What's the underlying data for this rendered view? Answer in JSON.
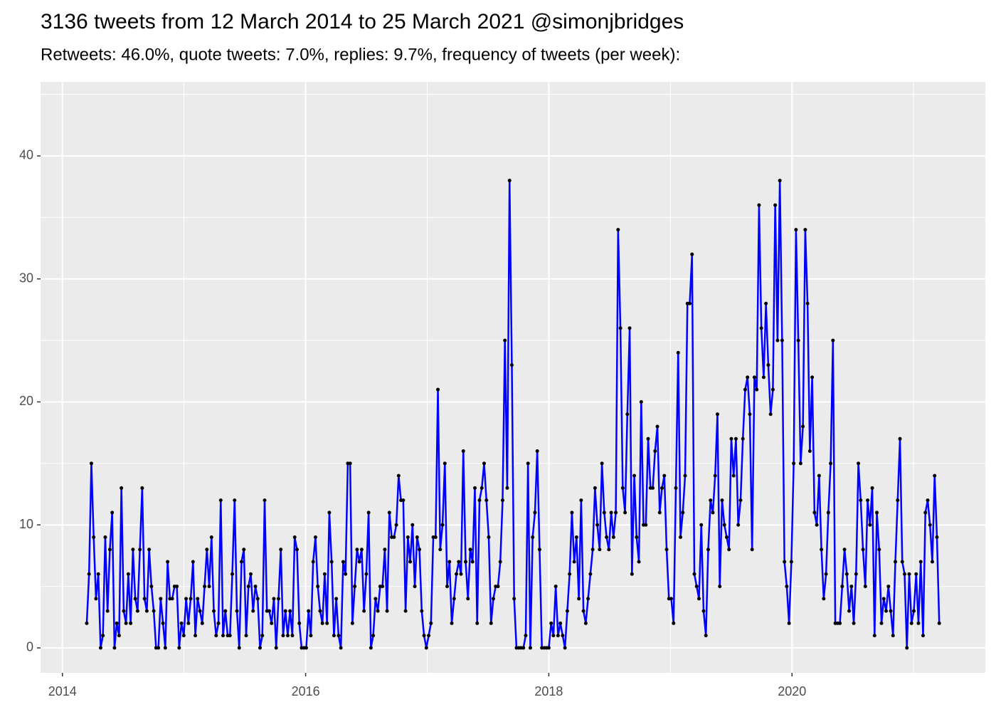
{
  "chart_data": {
    "type": "line",
    "title": "3136 tweets from 12 March 2014 to 25 March 2021 @simonjbridges",
    "subtitle": "Retweets: 46.0%, quote tweets: 7.0%, replies: 9.7%, frequency of tweets (per week):",
    "color": "#0000ff",
    "point_color": "#000000",
    "grid": true,
    "xlim": [
      2013.82,
      2021.59
    ],
    "xticks": [
      2014,
      2016,
      2018,
      2020
    ],
    "ylim": [
      -2.03,
      46.02
    ],
    "yticks": [
      0,
      10,
      20,
      30,
      40
    ],
    "x": [
      2014.2,
      2014.219,
      2014.238,
      2014.257,
      2014.276,
      2014.295,
      2014.314,
      2014.333,
      2014.352,
      2014.371,
      2014.39,
      2014.409,
      2014.428,
      2014.447,
      2014.466,
      2014.485,
      2014.504,
      2014.523,
      2014.542,
      2014.561,
      2014.58,
      2014.599,
      2014.618,
      2014.637,
      2014.656,
      2014.675,
      2014.694,
      2014.713,
      2014.732,
      2014.751,
      2014.77,
      2014.789,
      2014.808,
      2014.827,
      2014.846,
      2014.865,
      2014.884,
      2014.903,
      2014.922,
      2014.941,
      2014.96,
      2014.979,
      2014.998,
      2015.017,
      2015.036,
      2015.055,
      2015.074,
      2015.093,
      2015.112,
      2015.131,
      2015.15,
      2015.169,
      2015.188,
      2015.207,
      2015.226,
      2015.245,
      2015.264,
      2015.283,
      2015.302,
      2015.321,
      2015.34,
      2015.359,
      2015.378,
      2015.397,
      2015.416,
      2015.435,
      2015.454,
      2015.473,
      2015.492,
      2015.511,
      2015.53,
      2015.549,
      2015.568,
      2015.587,
      2015.606,
      2015.625,
      2015.644,
      2015.663,
      2015.682,
      2015.701,
      2015.72,
      2015.739,
      2015.758,
      2015.777,
      2015.796,
      2015.815,
      2015.834,
      2015.853,
      2015.872,
      2015.891,
      2015.91,
      2015.929,
      2015.948,
      2015.967,
      2015.986,
      2016.005,
      2016.024,
      2016.043,
      2016.062,
      2016.081,
      2016.1,
      2016.119,
      2016.138,
      2016.157,
      2016.176,
      2016.195,
      2016.214,
      2016.233,
      2016.252,
      2016.271,
      2016.29,
      2016.309,
      2016.328,
      2016.347,
      2016.366,
      2016.385,
      2016.404,
      2016.423,
      2016.442,
      2016.461,
      2016.48,
      2016.499,
      2016.518,
      2016.537,
      2016.556,
      2016.575,
      2016.594,
      2016.613,
      2016.632,
      2016.651,
      2016.67,
      2016.689,
      2016.708,
      2016.727,
      2016.746,
      2016.765,
      2016.784,
      2016.803,
      2016.822,
      2016.841,
      2016.86,
      2016.879,
      2016.898,
      2016.917,
      2016.936,
      2016.955,
      2016.974,
      2016.993,
      2017.012,
      2017.031,
      2017.05,
      2017.069,
      2017.088,
      2017.107,
      2017.126,
      2017.145,
      2017.164,
      2017.183,
      2017.202,
      2017.221,
      2017.24,
      2017.259,
      2017.278,
      2017.297,
      2017.316,
      2017.335,
      2017.354,
      2017.373,
      2017.392,
      2017.411,
      2017.43,
      2017.449,
      2017.468,
      2017.487,
      2017.506,
      2017.525,
      2017.544,
      2017.563,
      2017.582,
      2017.601,
      2017.62,
      2017.639,
      2017.658,
      2017.677,
      2017.696,
      2017.715,
      2017.734,
      2017.753,
      2017.772,
      2017.791,
      2017.81,
      2017.829,
      2017.848,
      2017.867,
      2017.886,
      2017.905,
      2017.924,
      2017.943,
      2017.962,
      2017.981,
      2018,
      2018.019,
      2018.038,
      2018.057,
      2018.076,
      2018.095,
      2018.114,
      2018.133,
      2018.152,
      2018.171,
      2018.19,
      2018.209,
      2018.228,
      2018.247,
      2018.266,
      2018.285,
      2018.304,
      2018.323,
      2018.342,
      2018.361,
      2018.38,
      2018.399,
      2018.418,
      2018.437,
      2018.456,
      2018.475,
      2018.494,
      2018.513,
      2018.532,
      2018.551,
      2018.57,
      2018.589,
      2018.608,
      2018.627,
      2018.646,
      2018.665,
      2018.684,
      2018.703,
      2018.722,
      2018.741,
      2018.76,
      2018.779,
      2018.798,
      2018.817,
      2018.836,
      2018.855,
      2018.874,
      2018.893,
      2018.912,
      2018.931,
      2018.95,
      2018.969,
      2018.988,
      2019.007,
      2019.026,
      2019.045,
      2019.064,
      2019.083,
      2019.102,
      2019.121,
      2019.14,
      2019.159,
      2019.178,
      2019.197,
      2019.216,
      2019.235,
      2019.254,
      2019.273,
      2019.292,
      2019.311,
      2019.33,
      2019.349,
      2019.368,
      2019.387,
      2019.406,
      2019.425,
      2019.444,
      2019.463,
      2019.482,
      2019.501,
      2019.52,
      2019.539,
      2019.558,
      2019.577,
      2019.596,
      2019.615,
      2019.634,
      2019.653,
      2019.672,
      2019.691,
      2019.71,
      2019.729,
      2019.748,
      2019.767,
      2019.786,
      2019.805,
      2019.824,
      2019.843,
      2019.862,
      2019.881,
      2019.9,
      2019.919,
      2019.938,
      2019.957,
      2019.976,
      2019.995,
      2020.014,
      2020.033,
      2020.052,
      2020.071,
      2020.09,
      2020.109,
      2020.128,
      2020.147,
      2020.166,
      2020.185,
      2020.204,
      2020.223,
      2020.242,
      2020.261,
      2020.28,
      2020.299,
      2020.318,
      2020.337,
      2020.356,
      2020.375,
      2020.394,
      2020.413,
      2020.432,
      2020.451,
      2020.47,
      2020.489,
      2020.508,
      2020.527,
      2020.546,
      2020.565,
      2020.584,
      2020.603,
      2020.622,
      2020.641,
      2020.66,
      2020.679,
      2020.698,
      2020.717,
      2020.736,
      2020.755,
      2020.774,
      2020.793,
      2020.812,
      2020.831,
      2020.85,
      2020.869,
      2020.888,
      2020.907,
      2020.926,
      2020.945,
      2020.964,
      2020.983,
      2021.002,
      2021.021,
      2021.04,
      2021.059,
      2021.078,
      2021.097,
      2021.116,
      2021.135,
      2021.154,
      2021.173,
      2021.192,
      2021.211
    ],
    "values": [
      2,
      6,
      15,
      9,
      4,
      6,
      0,
      1,
      9,
      3,
      8,
      11,
      0,
      2,
      1,
      13,
      3,
      2,
      6,
      2,
      8,
      4,
      3,
      8,
      13,
      4,
      3,
      8,
      5,
      3,
      0,
      0,
      4,
      2,
      0,
      7,
      4,
      4,
      5,
      5,
      0,
      2,
      1,
      4,
      2,
      4,
      7,
      1,
      4,
      3,
      2,
      5,
      8,
      5,
      9,
      3,
      1,
      2,
      12,
      1,
      3,
      1,
      1,
      6,
      12,
      3,
      0,
      7,
      8,
      1,
      5,
      6,
      3,
      5,
      4,
      0,
      1,
      12,
      3,
      3,
      2,
      4,
      0,
      4,
      8,
      1,
      3,
      1,
      3,
      1,
      9,
      8,
      2,
      0,
      0,
      0,
      3,
      1,
      7,
      9,
      5,
      3,
      2,
      6,
      2,
      11,
      7,
      1,
      4,
      1,
      0,
      7,
      6,
      15,
      15,
      2,
      5,
      8,
      7,
      8,
      3,
      6,
      11,
      0,
      1,
      4,
      3,
      5,
      5,
      8,
      3,
      11,
      9,
      9,
      10,
      14,
      12,
      12,
      3,
      9,
      7,
      10,
      5,
      9,
      8,
      3,
      1,
      0,
      1,
      2,
      9,
      9,
      21,
      8,
      10,
      15,
      5,
      7,
      2,
      4,
      6,
      7,
      6,
      16,
      7,
      4,
      8,
      7,
      13,
      2,
      12,
      13,
      15,
      12,
      9,
      2,
      4,
      5,
      5,
      7,
      12,
      25,
      13,
      38,
      23,
      4,
      0,
      0,
      0,
      0,
      1,
      15,
      0,
      9,
      11,
      16,
      8,
      0,
      0,
      0,
      0,
      2,
      1,
      5,
      1,
      2,
      1,
      0,
      3,
      6,
      11,
      7,
      9,
      4,
      12,
      3,
      2,
      4,
      6,
      8,
      13,
      10,
      8,
      15,
      11,
      9,
      8,
      11,
      9,
      11,
      34,
      26,
      13,
      11,
      19,
      26,
      6,
      14,
      9,
      7,
      20,
      10,
      10,
      17,
      13,
      13,
      16,
      18,
      11,
      13,
      14,
      8,
      4,
      4,
      2,
      13,
      24,
      9,
      11,
      14,
      28,
      28,
      32,
      6,
      5,
      4,
      10,
      3,
      1,
      8,
      12,
      11,
      14,
      19,
      5,
      12,
      10,
      9,
      8,
      17,
      14,
      17,
      10,
      12,
      17,
      21,
      22,
      19,
      8,
      22,
      21,
      36,
      26,
      22,
      28,
      23,
      19,
      21,
      36,
      25,
      38,
      25,
      7,
      5,
      2,
      7,
      15,
      34,
      25,
      15,
      18,
      34,
      28,
      16,
      22,
      11,
      10,
      14,
      8,
      4,
      6,
      11,
      15,
      25,
      2,
      2,
      2,
      5,
      8,
      6,
      3,
      5,
      2,
      6,
      15,
      12,
      8,
      5,
      12,
      10,
      13,
      1,
      11,
      8,
      2,
      4,
      3,
      5,
      3,
      1,
      7,
      12,
      17,
      7,
      6,
      0,
      6,
      2,
      3,
      6,
      2,
      7,
      1,
      11,
      12,
      10,
      7,
      14,
      9,
      2
    ]
  }
}
